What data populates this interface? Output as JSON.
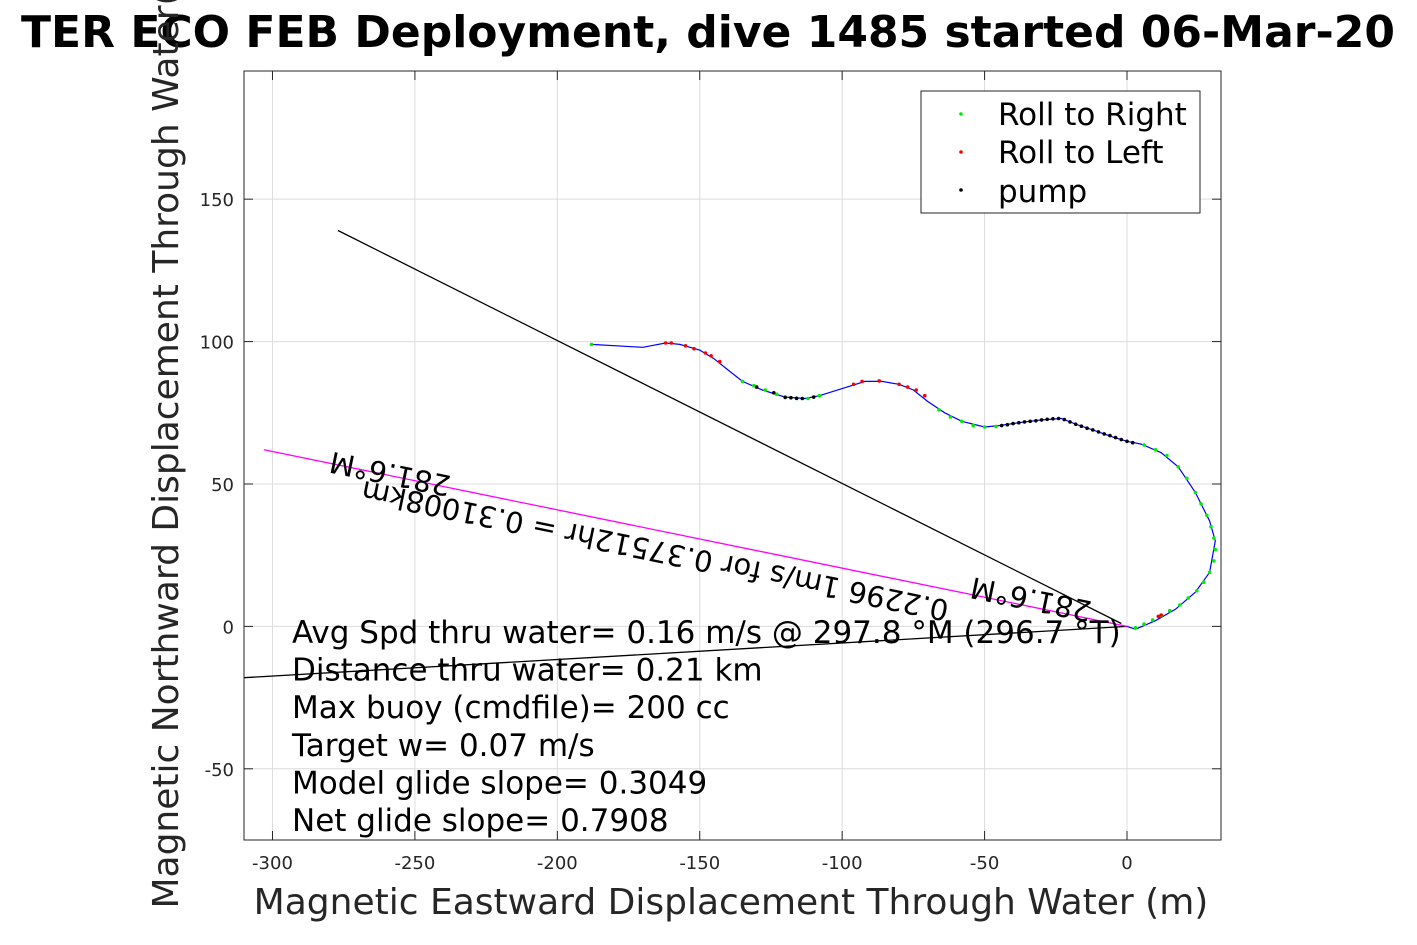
{
  "chart_data": {
    "type": "scatter",
    "title": "TER ECO FEB Deployment, dive 1485 started 06-Mar-20",
    "xlabel": "Magnetic Eastward Displacement Through Water (m)",
    "ylabel": "Magnetic Northward Displacement Through Water(",
    "xlim": [
      -310,
      33
    ],
    "ylim": [
      -75,
      195
    ],
    "xticks": [
      -300,
      -250,
      -200,
      -150,
      -100,
      -50,
      0
    ],
    "yticks": [
      -50,
      0,
      50,
      100,
      150
    ],
    "grid": true,
    "legend_position": "top-right",
    "legend": [
      {
        "label": "Roll to Right",
        "color": "#00ee00"
      },
      {
        "label": "Roll to Left",
        "color": "#ff0000"
      },
      {
        "label": "pump",
        "color": "#000000"
      }
    ],
    "track": {
      "name": "track",
      "color": "#0000ff",
      "points": [
        [
          -188,
          99
        ],
        [
          -170,
          98
        ],
        [
          -162,
          99.5
        ],
        [
          -157,
          99
        ],
        [
          -150,
          97
        ],
        [
          -145,
          94
        ],
        [
          -140,
          90
        ],
        [
          -135,
          86
        ],
        [
          -128,
          83
        ],
        [
          -120,
          80.5
        ],
        [
          -113,
          80
        ],
        [
          -108,
          81
        ],
        [
          -100,
          83.5
        ],
        [
          -92,
          86
        ],
        [
          -86,
          86
        ],
        [
          -80,
          85
        ],
        [
          -75,
          83
        ],
        [
          -70,
          79
        ],
        [
          -64,
          75
        ],
        [
          -58,
          72
        ],
        [
          -50,
          70
        ],
        [
          -45,
          70.5
        ],
        [
          -38,
          71.5
        ],
        [
          -30,
          72.5
        ],
        [
          -23,
          73
        ],
        [
          -18,
          71
        ],
        [
          -12,
          69
        ],
        [
          -5,
          66.5
        ],
        [
          0,
          65
        ],
        [
          5,
          64
        ],
        [
          12,
          61
        ],
        [
          18,
          56
        ],
        [
          24,
          47
        ],
        [
          29,
          37
        ],
        [
          31,
          30
        ],
        [
          29,
          19
        ],
        [
          24,
          12
        ],
        [
          17,
          6
        ],
        [
          10,
          2
        ],
        [
          3,
          -1
        ],
        [
          0,
          0
        ]
      ]
    },
    "markers": {
      "roll_right": [
        [
          -188,
          99
        ],
        [
          -135,
          86
        ],
        [
          -131,
          84.5
        ],
        [
          -127,
          83
        ],
        [
          -123,
          81.5
        ],
        [
          -120,
          80.5
        ],
        [
          -116,
          80
        ],
        [
          -112,
          80
        ],
        [
          -108,
          81
        ],
        [
          -66,
          76
        ],
        [
          -62,
          73.5
        ],
        [
          -58,
          72
        ],
        [
          -54,
          70.5
        ],
        [
          -50,
          70
        ],
        [
          -46,
          70.2
        ],
        [
          6,
          63.7
        ],
        [
          10,
          62
        ],
        [
          14,
          60
        ],
        [
          18,
          56
        ],
        [
          21,
          52
        ],
        [
          24,
          47
        ],
        [
          26,
          43
        ],
        [
          28,
          39
        ],
        [
          29.5,
          35
        ],
        [
          30.5,
          31
        ],
        [
          31,
          27
        ],
        [
          30.5,
          23
        ],
        [
          29,
          19
        ],
        [
          27,
          15.5
        ],
        [
          24.5,
          12.5
        ],
        [
          21.5,
          10
        ],
        [
          18.5,
          7.5
        ],
        [
          15,
          5.5
        ],
        [
          12,
          3.8
        ],
        [
          9,
          2.2
        ],
        [
          6,
          0.8
        ],
        [
          3,
          -0.5
        ]
      ],
      "roll_left": [
        [
          -162,
          99.5
        ],
        [
          -160,
          99.5
        ],
        [
          -155,
          98.5
        ],
        [
          -152,
          97.5
        ],
        [
          -148,
          96
        ],
        [
          -146,
          95
        ],
        [
          -143,
          93
        ],
        [
          -96,
          85
        ],
        [
          -93,
          86
        ],
        [
          -87,
          86.2
        ],
        [
          -80,
          85
        ],
        [
          -77,
          84
        ],
        [
          -74,
          83
        ],
        [
          -71,
          81
        ],
        [
          11,
          3.5
        ],
        [
          12,
          4
        ]
      ],
      "pump": [
        [
          -130,
          84
        ],
        [
          -124,
          82
        ],
        [
          -118,
          80.3
        ],
        [
          -114,
          80
        ],
        [
          -110,
          80.5
        ],
        [
          -44,
          70.5
        ],
        [
          -42,
          70.8
        ],
        [
          -40,
          71.2
        ],
        [
          -38,
          71.5
        ],
        [
          -36,
          71.8
        ],
        [
          -34,
          72
        ],
        [
          -32,
          72.2
        ],
        [
          -30,
          72.5
        ],
        [
          -28,
          72.7
        ],
        [
          -26,
          72.9
        ],
        [
          -24,
          73
        ],
        [
          -22,
          72.6
        ],
        [
          -20,
          71.8
        ],
        [
          -18,
          71
        ],
        [
          -16,
          70.3
        ],
        [
          -14,
          69.6
        ],
        [
          -12,
          69
        ],
        [
          -10,
          68.3
        ],
        [
          -8,
          67.6
        ],
        [
          -6,
          67
        ],
        [
          -4,
          66.3
        ],
        [
          -2,
          65.6
        ],
        [
          0,
          65
        ],
        [
          2,
          64.5
        ],
        [
          -120,
          80.4
        ],
        [
          -116,
          80.1
        ]
      ]
    },
    "lines": [
      {
        "name": "heading-line",
        "color": "#000000",
        "points": [
          [
            -277,
            139
          ],
          [
            -2,
            1
          ]
        ]
      },
      {
        "name": "current-line",
        "color": "#000000",
        "points": [
          [
            -310,
            -18
          ],
          [
            0,
            0
          ]
        ]
      },
      {
        "name": "magenta-line",
        "color": "#ff00ff",
        "points": [
          [
            -303,
            62
          ],
          [
            0,
            0
          ]
        ]
      }
    ],
    "annotations": [
      {
        "text": "281.6°M",
        "x": -258,
        "y": 57,
        "rotate": 191.6
      },
      {
        "text": "0.2296 1m/s for 0.37512hr = 0.31008km",
        "x": -165,
        "y": 30,
        "rotate": 191.6
      },
      {
        "text": "281.6°M",
        "x": -33,
        "y": 13,
        "rotate": 191.6
      }
    ],
    "stats": [
      "Avg Spd thru water=  0.16 m/s @ 297.8 °M (296.7 °T)",
      "Distance thru water=  0.21 km",
      "Max buoy (cmdfile)= 200 cc",
      "Target w= 0.07 m/s",
      "Model glide slope= 0.3049",
      "Net glide slope= 0.7908"
    ]
  }
}
